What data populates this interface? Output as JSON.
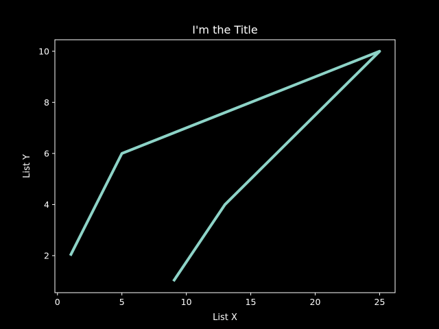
{
  "chart_data": {
    "type": "line",
    "title": "I'm the Title",
    "xlabel": "List X",
    "ylabel": "List Y",
    "xlim": [
      -0.2,
      26.2
    ],
    "ylim": [
      0.55,
      10.45
    ],
    "x_ticks": [
      0,
      5,
      10,
      15,
      20,
      25
    ],
    "y_ticks": [
      2,
      4,
      6,
      8,
      10
    ],
    "grid": false,
    "series": [
      {
        "color": "#8dd3c7",
        "x": [
          1,
          5,
          25,
          13,
          9
        ],
        "y": [
          2,
          6,
          10,
          4,
          1
        ]
      }
    ]
  },
  "colors": {
    "background": "#000000",
    "foreground": "#ffffff",
    "line": "#8dd3c7"
  }
}
